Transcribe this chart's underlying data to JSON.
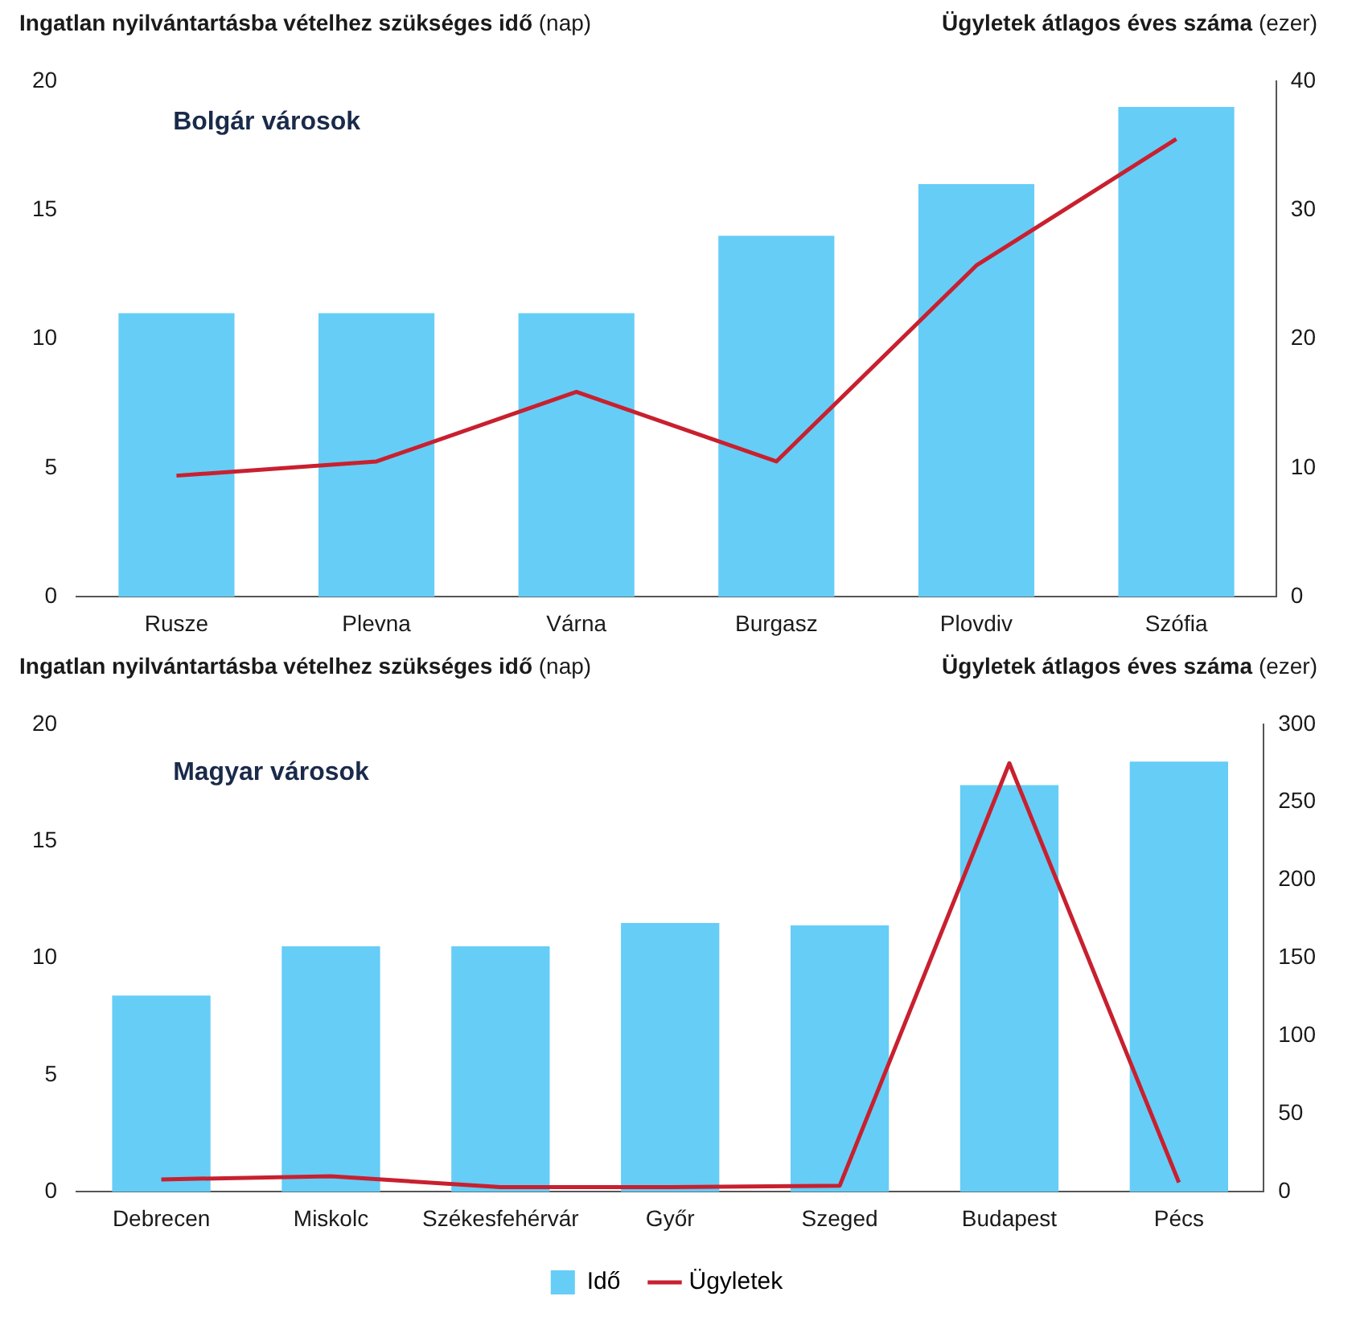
{
  "chart_data": [
    {
      "type": "bar",
      "ylabel": "Ingatlan nyilvántartásba vételhez szükséges idő (nap)",
      "y2label": "Ügyletek átlagos éves száma (ezer)",
      "annotations": [
        "Bolgár városok"
      ],
      "categories": [
        "Rusze",
        "Plevna",
        "Várna",
        "Burgasz",
        "Plovdiv",
        "Szófia"
      ],
      "ylim": [
        0,
        20
      ],
      "yticks": [
        0,
        5,
        10,
        15,
        20
      ],
      "y2lim": [
        0,
        40
      ],
      "y2ticks": [
        0,
        10,
        20,
        30,
        40
      ],
      "grid": false,
      "legend": false,
      "series": [
        {
          "color": "#66cdf6",
          "values": [
            11,
            11,
            11,
            14,
            16,
            19
          ]
        },
        {
          "type": "line",
          "axis": "y2",
          "color": "#c8202f",
          "values": [
            9.4,
            10.5,
            15.9,
            10.5,
            25.7,
            35.5
          ]
        }
      ]
    },
    {
      "type": "bar",
      "ylabel": "Ingatlan nyilvántartásba vételhez szükséges idő (nap)",
      "y2label": "Ügyletek átlagos éves száma (ezer)",
      "annotations": [
        "Magyar városok"
      ],
      "categories": [
        "Debrecen",
        "Miskolc",
        "Székesfehérvár",
        "Győr",
        "Szeged",
        "Budapest",
        "Pécs"
      ],
      "ylim": [
        0,
        20
      ],
      "yticks": [
        0,
        5,
        10,
        15,
        20
      ],
      "y2lim": [
        0,
        300
      ],
      "y2ticks": [
        0,
        50,
        100,
        150,
        200,
        250,
        300
      ],
      "grid": false,
      "legend": "bottom",
      "series": [
        {
          "name": "Idő",
          "color": "#66cdf6",
          "values": [
            8.4,
            10.5,
            10.5,
            11.5,
            11.4,
            17.4,
            18.4
          ]
        },
        {
          "type": "line",
          "axis": "y2",
          "name": "Ügyletek",
          "color": "#c8202f",
          "values": [
            8,
            10,
            3,
            3,
            4,
            275,
            6
          ]
        }
      ]
    }
  ]
}
